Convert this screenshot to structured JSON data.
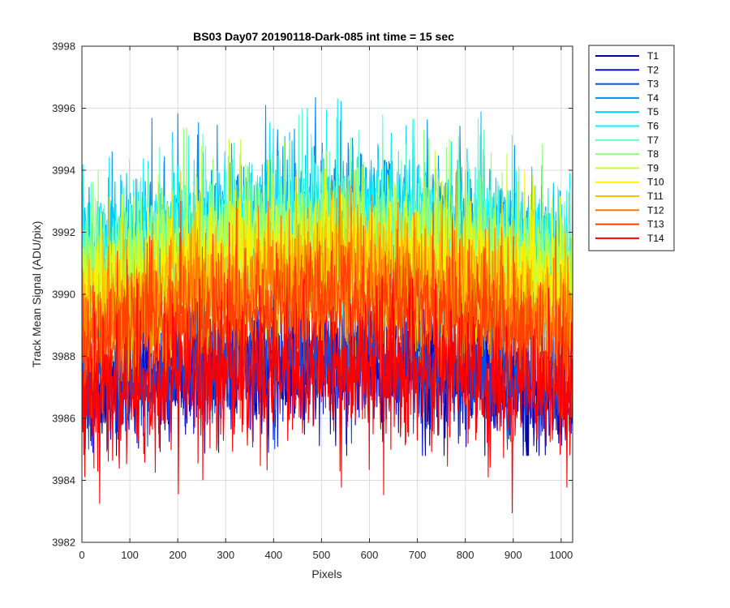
{
  "chart_data": {
    "type": "line",
    "title": "BS03 Day07 20190118-Dark-085 int time = 15 sec",
    "xlabel": "Pixels",
    "ylabel": "Track Mean Signal (ADU/pix)",
    "xlim": [
      0,
      1024
    ],
    "ylim": [
      3982,
      3998
    ],
    "xticks": [
      0,
      100,
      200,
      300,
      400,
      500,
      600,
      700,
      800,
      900,
      1000
    ],
    "yticks": [
      3982,
      3984,
      3986,
      3988,
      3990,
      3992,
      3994,
      3996,
      3998
    ],
    "grid": true,
    "legend_position": "outside-top-right",
    "n_points": 1024,
    "series": [
      {
        "name": "T1",
        "color": "#0000aa",
        "edge_level": 3986.6,
        "center_level": 3987.8,
        "noise": 0.9,
        "max_value": 3989.6,
        "min_value": 3984.8
      },
      {
        "name": "T2",
        "color": "#0010d8",
        "edge_level": 3986.7,
        "center_level": 3987.9,
        "noise": 0.9,
        "max_value": 3989.8,
        "min_value": 3984.9
      },
      {
        "name": "T3",
        "color": "#0050e8",
        "edge_level": 3986.8,
        "center_level": 3988.0,
        "noise": 0.9,
        "max_value": 3990.0,
        "min_value": 3985.0
      },
      {
        "name": "T4",
        "color": "#008ff0",
        "edge_level": 3991.0,
        "center_level": 3992.6,
        "noise": 1.0,
        "max_value": 3997.2,
        "min_value": 3988.5
      },
      {
        "name": "T5",
        "color": "#00c8ff",
        "edge_level": 3991.0,
        "center_level": 3992.6,
        "noise": 1.0,
        "max_value": 3996.8,
        "min_value": 3988.5
      },
      {
        "name": "T6",
        "color": "#10f0ff",
        "edge_level": 3991.0,
        "center_level": 3992.5,
        "noise": 1.0,
        "max_value": 3996.3,
        "min_value": 3988.5
      },
      {
        "name": "T7",
        "color": "#60ffc8",
        "edge_level": 3990.8,
        "center_level": 3992.2,
        "noise": 1.0,
        "max_value": 3996.2,
        "min_value": 3988.4
      },
      {
        "name": "T8",
        "color": "#90ff80",
        "edge_level": 3990.6,
        "center_level": 3992.0,
        "noise": 1.0,
        "max_value": 3996.3,
        "min_value": 3988.2
      },
      {
        "name": "T9",
        "color": "#c8ff30",
        "edge_level": 3990.2,
        "center_level": 3991.6,
        "noise": 1.0,
        "max_value": 3995.0,
        "min_value": 3987.8
      },
      {
        "name": "T10",
        "color": "#fff000",
        "edge_level": 3989.8,
        "center_level": 3991.2,
        "noise": 1.0,
        "max_value": 3994.6,
        "min_value": 3987.5
      },
      {
        "name": "T11",
        "color": "#ffbb00",
        "edge_level": 3989.4,
        "center_level": 3990.8,
        "noise": 1.0,
        "max_value": 3994.0,
        "min_value": 3987.2
      },
      {
        "name": "T12",
        "color": "#ff7a00",
        "edge_level": 3988.8,
        "center_level": 3990.3,
        "noise": 1.0,
        "max_value": 3993.5,
        "min_value": 3986.6
      },
      {
        "name": "T13",
        "color": "#ff4000",
        "edge_level": 3988.2,
        "center_level": 3989.7,
        "noise": 1.0,
        "max_value": 3993.0,
        "min_value": 3986.0
      },
      {
        "name": "T14",
        "color": "#ff0000",
        "edge_level": 3986.6,
        "center_level": 3987.6,
        "noise": 1.1,
        "max_value": 3990.5,
        "min_value": 3982.2
      }
    ]
  }
}
